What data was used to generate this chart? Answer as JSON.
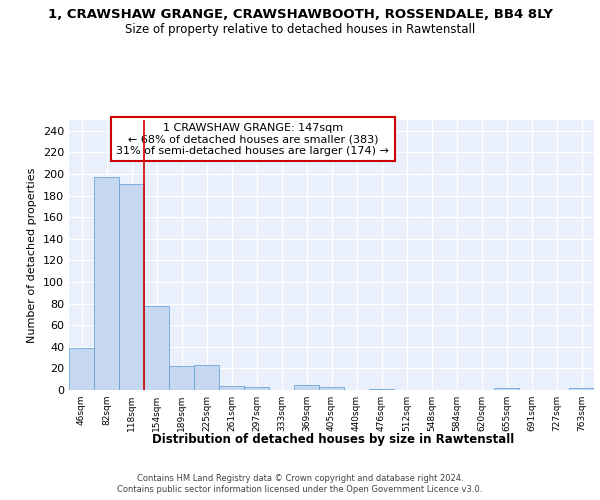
{
  "title": "1, CRAWSHAW GRANGE, CRAWSHAWBOOTH, ROSSENDALE, BB4 8LY",
  "subtitle": "Size of property relative to detached houses in Rawtenstall",
  "xlabel": "Distribution of detached houses by size in Rawtenstall",
  "ylabel": "Number of detached properties",
  "annotation_line1": "1 CRAWSHAW GRANGE: 147sqm",
  "annotation_line2": "← 68% of detached houses are smaller (383)",
  "annotation_line3": "31% of semi-detached houses are larger (174) →",
  "bar_labels": [
    "46sqm",
    "82sqm",
    "118sqm",
    "154sqm",
    "189sqm",
    "225sqm",
    "261sqm",
    "297sqm",
    "333sqm",
    "369sqm",
    "405sqm",
    "440sqm",
    "476sqm",
    "512sqm",
    "548sqm",
    "584sqm",
    "620sqm",
    "655sqm",
    "691sqm",
    "727sqm",
    "763sqm"
  ],
  "bar_values": [
    39,
    197,
    191,
    78,
    22,
    23,
    4,
    3,
    0,
    5,
    3,
    0,
    1,
    0,
    0,
    0,
    0,
    2,
    0,
    0,
    2
  ],
  "bar_color": "#c5d8f0",
  "bar_edge_color": "#5b9bd5",
  "red_line_index": 2.5,
  "red_line_color": "#cc0000",
  "annotation_box_color": "#ffffff",
  "annotation_box_edge": "#cc0000",
  "bg_color": "#eaf0fb",
  "grid_color": "#ffffff",
  "ylim": [
    0,
    250
  ],
  "yticks": [
    0,
    20,
    40,
    60,
    80,
    100,
    120,
    140,
    160,
    180,
    200,
    220,
    240
  ],
  "footer_line1": "Contains HM Land Registry data © Crown copyright and database right 2024.",
  "footer_line2": "Contains public sector information licensed under the Open Government Licence v3.0."
}
